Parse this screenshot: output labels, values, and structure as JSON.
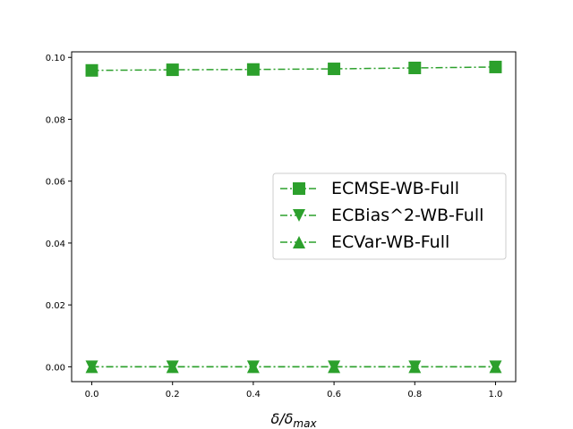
{
  "chart_data": {
    "type": "line",
    "title": "",
    "xlabel": "δ/δ",
    "xlabel_sub": "max",
    "ylabel": "",
    "x": [
      0.0,
      0.2,
      0.4,
      0.6,
      0.8,
      1.0
    ],
    "xlim": [
      -0.05,
      1.05
    ],
    "ylim": [
      -0.0048,
      0.1018
    ],
    "xticks": [
      "0.0",
      "0.2",
      "0.4",
      "0.6",
      "0.8",
      "1.0"
    ],
    "yticks": [
      "0.00",
      "0.02",
      "0.04",
      "0.06",
      "0.08",
      "0.10"
    ],
    "grid": false,
    "legend_position": "center-right",
    "color": "#2ca02c",
    "series": [
      {
        "name": "ECMSE-WB-Full",
        "marker": "square",
        "values": [
          0.0958,
          0.096,
          0.0961,
          0.0963,
          0.0966,
          0.0969
        ]
      },
      {
        "name": "ECBias^2-WB-Full",
        "marker": "triangle-down",
        "values": [
          0.0,
          0.0,
          0.0,
          0.0,
          0.0,
          0.0
        ]
      },
      {
        "name": "ECVar-WB-Full",
        "marker": "triangle-up",
        "values": [
          0.0,
          0.0,
          0.0,
          0.0,
          0.0,
          0.0
        ]
      }
    ]
  }
}
